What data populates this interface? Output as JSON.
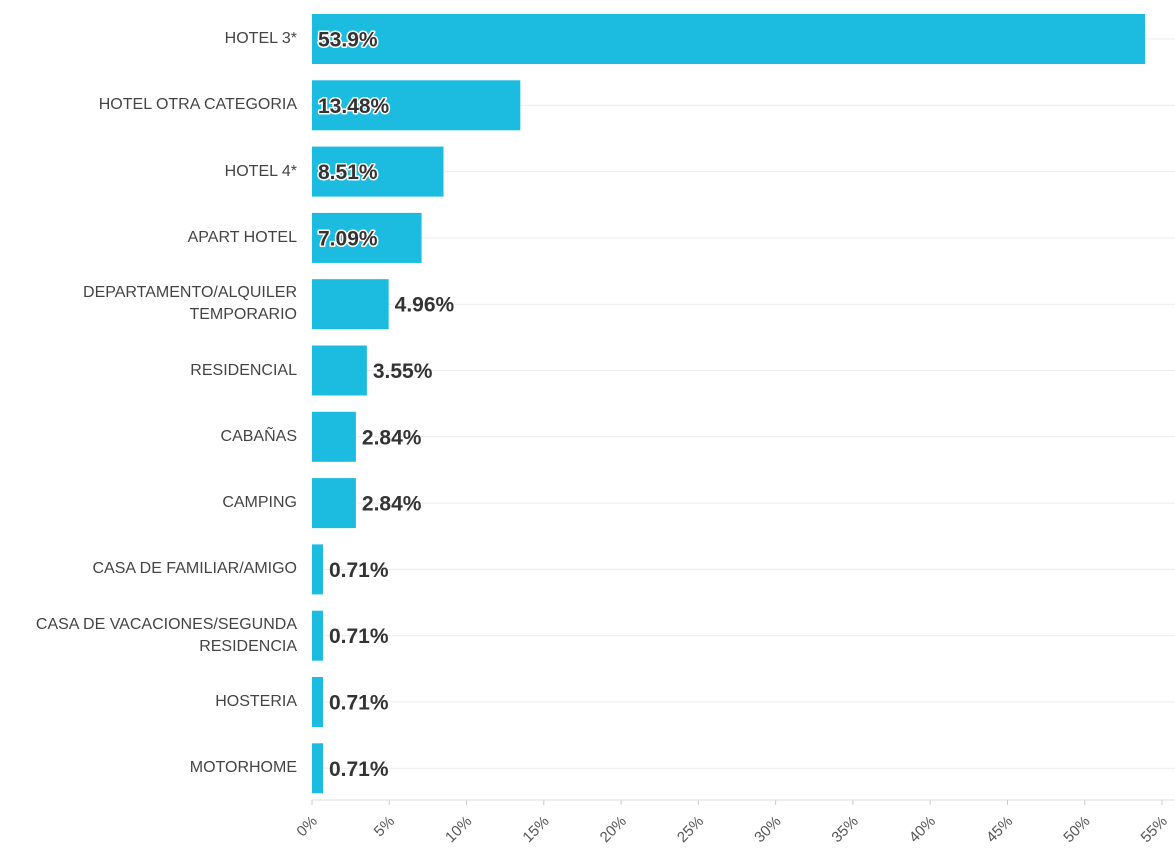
{
  "chart_data": {
    "type": "bar",
    "orientation": "horizontal",
    "color": "#1cbbe0",
    "categories": [
      "HOTEL 3*",
      "HOTEL OTRA CATEGORIA",
      "HOTEL 4*",
      "APART HOTEL",
      "DEPARTAMENTO/ALQUILER TEMPORARIO",
      "RESIDENCIAL",
      "CABAÑAS",
      "CAMPING",
      "CASA DE FAMILIAR/AMIGO",
      "CASA DE VACACIONES/SEGUNDA RESIDENCIA",
      "HOSTERIA",
      "MOTORHOME"
    ],
    "values": [
      53.9,
      13.48,
      8.51,
      7.09,
      4.96,
      3.55,
      2.84,
      2.84,
      0.71,
      0.71,
      0.71,
      0.71
    ],
    "value_labels": [
      "53.9%",
      "13.48%",
      "8.51%",
      "7.09%",
      "4.96%",
      "3.55%",
      "2.84%",
      "2.84%",
      "0.71%",
      "0.71%",
      "0.71%",
      "0.71%"
    ],
    "xlim": [
      0,
      55
    ],
    "xticks": [
      {
        "value": 0,
        "label": "0%"
      },
      {
        "value": 5,
        "label": "5%"
      },
      {
        "value": 10,
        "label": "10%"
      },
      {
        "value": 15,
        "label": "15%"
      },
      {
        "value": 20,
        "label": "20%"
      },
      {
        "value": 25,
        "label": "25%"
      },
      {
        "value": 30,
        "label": "30%"
      },
      {
        "value": 35,
        "label": "35%"
      },
      {
        "value": 40,
        "label": "40%"
      },
      {
        "value": 45,
        "label": "45%"
      },
      {
        "value": 50,
        "label": "50%"
      },
      {
        "value": 55,
        "label": "55%"
      }
    ]
  }
}
